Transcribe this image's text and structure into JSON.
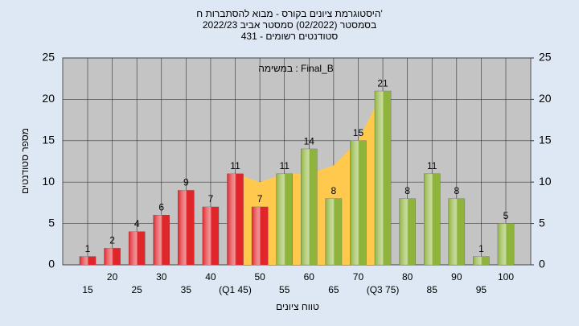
{
  "chart_data": {
    "type": "bar",
    "title": "היסטוגרמת ציונים בקורס - מבוא להסתברות ח'",
    "subtitle": "בסמסטר  (02/2022)  סמסטר אביב 2022/23",
    "subtitle2": "431 - סטודנטים רשומים",
    "annotation": "במשימה : Final_B",
    "x_label": "טווח ציונים",
    "y_label": "מספר סטודנטים",
    "categories": [
      "15",
      "20",
      "25",
      "30",
      "35",
      "40",
      "(Q1 45)",
      "50",
      "55",
      "60",
      "65",
      "70",
      "(Q3 75)",
      "80",
      "85",
      "90",
      "95",
      "100"
    ],
    "values": [
      1,
      2,
      4,
      6,
      9,
      7,
      11,
      7,
      11,
      14,
      8,
      15,
      21,
      8,
      11,
      8,
      1,
      5
    ],
    "colors": [
      "#e0252b",
      "#e0252b",
      "#e0252b",
      "#e0252b",
      "#e0252b",
      "#e0252b",
      "#e0252b",
      "#e0252b",
      "#8fb43c",
      "#8fb43c",
      "#8fb43c",
      "#8fb43c",
      "#8fb43c",
      "#8fb43c",
      "#8fb43c",
      "#8fb43c",
      "#8fb43c",
      "#8fb43c"
    ],
    "area_values": [
      null,
      null,
      null,
      null,
      null,
      null,
      11,
      10,
      11,
      11,
      12,
      15,
      21,
      null,
      null,
      null,
      null,
      null
    ],
    "area_color": "#ffc94d",
    "ylim": [
      0,
      25
    ],
    "yticks": [
      0,
      5,
      10,
      15,
      20,
      25
    ],
    "y2lim": [
      0,
      25
    ],
    "y2ticks": [
      0,
      5,
      10,
      15,
      20,
      25
    ],
    "grid": true
  }
}
